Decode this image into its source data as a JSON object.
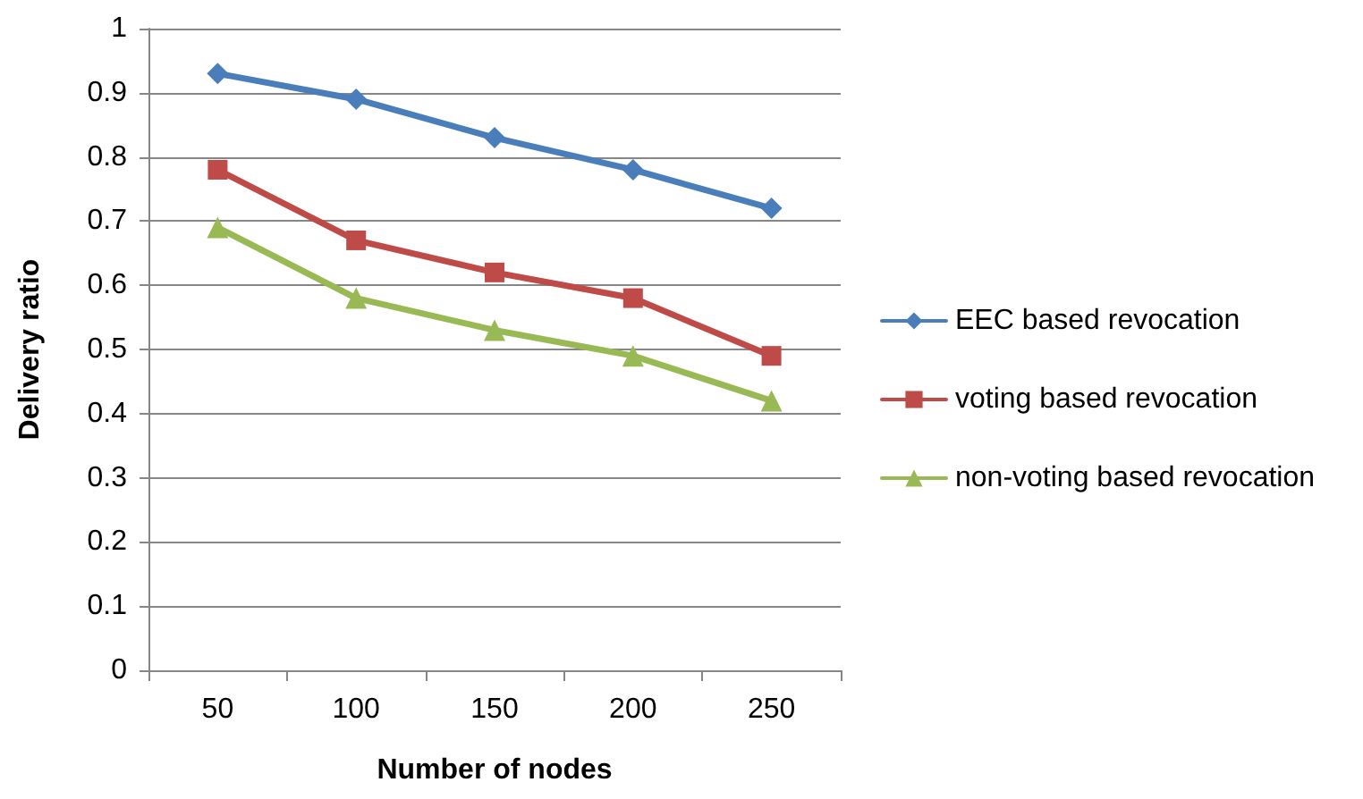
{
  "chart_data": {
    "type": "line",
    "xlabel": "Number of nodes",
    "ylabel": "Delivery ratio",
    "categories": [
      "50",
      "100",
      "150",
      "200",
      "250"
    ],
    "series": [
      {
        "name": "EEC based revocation",
        "color": "#4a7ebb",
        "marker": "diamond",
        "values": [
          0.93,
          0.89,
          0.83,
          0.78,
          0.72
        ]
      },
      {
        "name": "voting based revocation",
        "color": "#be4b48",
        "marker": "square",
        "values": [
          0.78,
          0.67,
          0.62,
          0.58,
          0.49
        ]
      },
      {
        "name": "non-voting based revocation",
        "color": "#98b954",
        "marker": "triangle",
        "values": [
          0.69,
          0.58,
          0.53,
          0.49,
          0.42
        ]
      }
    ],
    "ylim": [
      0,
      1
    ],
    "yticks": [
      0,
      0.1,
      0.2,
      0.3,
      0.4,
      0.5,
      0.6,
      0.7,
      0.8,
      0.9,
      1
    ],
    "grid": "y",
    "legend": "right",
    "line_style": "solid"
  }
}
